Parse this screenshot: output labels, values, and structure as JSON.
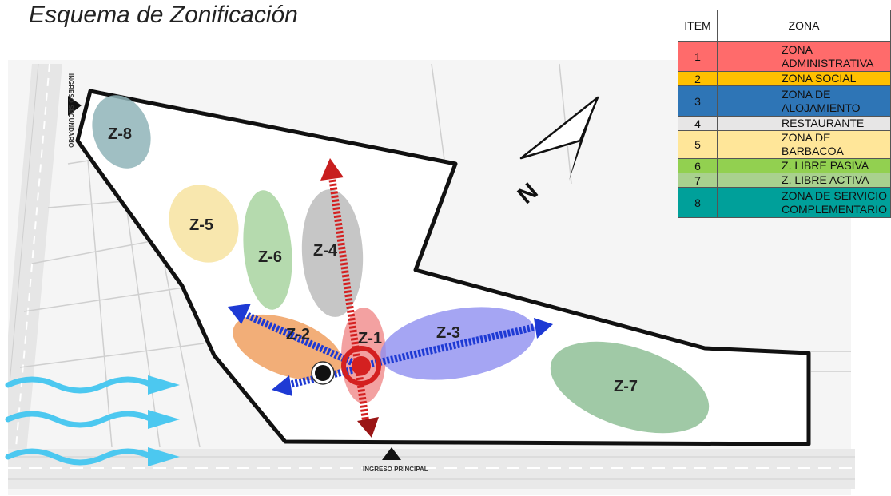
{
  "title": "Esquema de Zonificación",
  "legend": {
    "headers": {
      "item": "ITEM",
      "zona": "ZONA"
    },
    "rows": [
      {
        "item": "1",
        "zona_lines": [
          "ZONA",
          "ADMINISTRATIVA"
        ],
        "color": "#ff6b6b",
        "height": 38
      },
      {
        "item": "2",
        "zona_lines": [
          "ZONA SOCIAL"
        ],
        "color": "#ffc000",
        "height": 18
      },
      {
        "item": "3",
        "zona_lines": [
          "ZONA DE",
          "ALOJAMIENTO"
        ],
        "color": "#2e75b6",
        "height": 38
      },
      {
        "item": "4",
        "zona_lines": [
          "RESTAURANTE"
        ],
        "color": "#e7e6e6",
        "height": 18
      },
      {
        "item": "5",
        "zona_lines": [
          "ZONA DE BARBACOA"
        ],
        "color": "#ffe699",
        "height": 18
      },
      {
        "item": "6",
        "zona_lines": [
          "Z. LIBRE PASIVA"
        ],
        "color": "#92d050",
        "height": 18
      },
      {
        "item": "7",
        "zona_lines": [
          "Z. LIBRE ACTIVA"
        ],
        "color": "#a9d18e",
        "height": 18
      },
      {
        "item": "8",
        "zona_lines": [
          "ZONA DE SERVICIO",
          "COMPLEMENTARIO"
        ],
        "color": "#00a09a",
        "height": 38
      }
    ]
  },
  "map": {
    "zones": [
      {
        "label": "Z-1",
        "color": "#f08a8a"
      },
      {
        "label": "Z-2",
        "color": "#f0a060"
      },
      {
        "label": "Z-3",
        "color": "#8f8ff0"
      },
      {
        "label": "Z-4",
        "color": "#b8b8b8"
      },
      {
        "label": "Z-5",
        "color": "#f7e3a0"
      },
      {
        "label": "Z-6",
        "color": "#a8d4a0"
      },
      {
        "label": "Z-7",
        "color": "#8fbf96"
      },
      {
        "label": "Z-8",
        "color": "#8fb4b8"
      }
    ],
    "access_main": "INGRESO PRINCIPAL",
    "access_secondary": "INGRESO SECUNDARIO",
    "north_letter": "N"
  },
  "colors": {
    "circulation_red": "#d42020",
    "circulation_blue": "#1e3ad4",
    "wind": "#4cc8f0",
    "boundary": "#111111"
  }
}
